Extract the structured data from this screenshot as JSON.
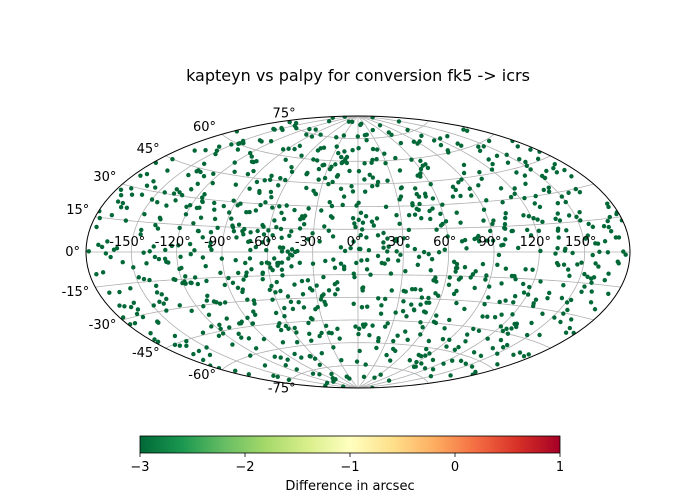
{
  "chart_data": {
    "type": "scatter",
    "projection": "aitoff",
    "title": "kapteyn vs palpy for conversion fk5 -> icrs",
    "xlabel": "",
    "ylabel": "",
    "grid": true,
    "lon_ticks": [
      "-150°",
      "-120°",
      "-90°",
      "-60°",
      "-30°",
      "0°",
      "30°",
      "60°",
      "90°",
      "120°",
      "150°"
    ],
    "lon_tick_values": [
      -150,
      -120,
      -90,
      -60,
      -30,
      0,
      30,
      60,
      90,
      120,
      150
    ],
    "lat_ticks": [
      "-75°",
      "-60°",
      "-45°",
      "-30°",
      "-15°",
      "0°",
      "15°",
      "30°",
      "45°",
      "60°",
      "75°"
    ],
    "lat_tick_values": [
      -75,
      -60,
      -45,
      -30,
      -15,
      0,
      15,
      30,
      45,
      60,
      75
    ],
    "marker_color": "#006837",
    "colorbar": {
      "label": "Difference in arcsec",
      "min": -3,
      "max": 1,
      "ticks": [
        "−3",
        "−2",
        "−1",
        "0",
        "1"
      ],
      "tick_values": [
        -3,
        -2,
        -1,
        0,
        1
      ],
      "colormap": "RdYlGn_r",
      "colors": [
        "#006837",
        "#1a9850",
        "#66bd63",
        "#a6d96a",
        "#d9ef8b",
        "#ffffbf",
        "#fee08b",
        "#fdae61",
        "#f46d43",
        "#d73027",
        "#a50026"
      ]
    },
    "points": {
      "count": 1000,
      "value": -3,
      "distribution": "uniform on sphere",
      "lon_range": [
        -180,
        180
      ],
      "lat_range": [
        -90,
        90
      ]
    }
  }
}
